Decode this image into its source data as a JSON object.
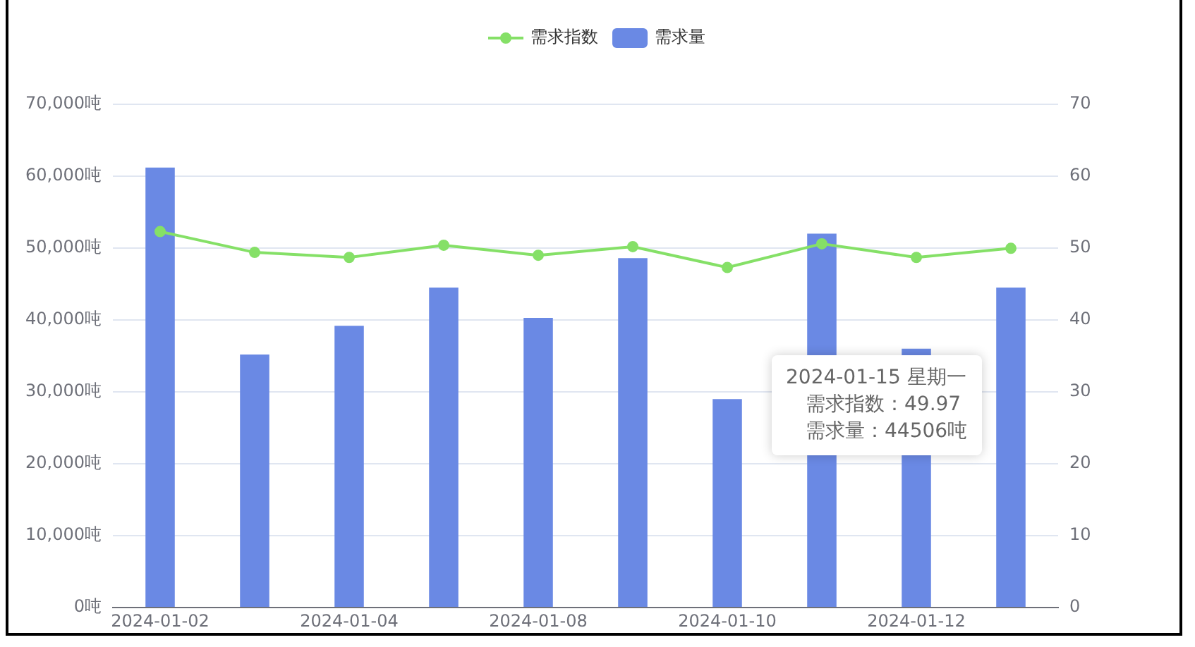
{
  "chart_data": {
    "type": "bar",
    "categories": [
      "2024-01-02",
      null,
      "2024-01-04",
      null,
      "2024-01-08",
      null,
      "2024-01-10",
      null,
      "2024-01-12",
      null
    ],
    "series": [
      {
        "name": "需求指数",
        "type": "line",
        "axis": "y2",
        "color": "#85e067",
        "values": [
          52.3,
          49.4,
          48.7,
          50.4,
          49.0,
          50.2,
          47.3,
          50.6,
          48.7,
          49.97
        ]
      },
      {
        "name": "需求量",
        "type": "bar",
        "color": "#6a89e4",
        "values": [
          61200,
          35200,
          39200,
          44500,
          40300,
          48600,
          29000,
          52000,
          36000,
          44506
        ]
      }
    ],
    "ylim": [
      0,
      70000
    ],
    "yticks": [
      {
        "value": 0,
        "label": "0吨"
      },
      {
        "value": 10000,
        "label": "10,000吨"
      },
      {
        "value": 20000,
        "label": "20,000吨"
      },
      {
        "value": 30000,
        "label": "30,000吨"
      },
      {
        "value": 40000,
        "label": "40,000吨"
      },
      {
        "value": 50000,
        "label": "50,000吨"
      },
      {
        "value": 60000,
        "label": "60,000吨"
      },
      {
        "value": 70000,
        "label": "70,000吨"
      }
    ],
    "y2lim": [
      0,
      70
    ],
    "y2ticks": [
      0,
      10,
      20,
      30,
      40,
      50,
      60,
      70
    ],
    "grid": "y",
    "legend": "top",
    "marker": "circle",
    "annotations": [
      "2024-01-15 星期一",
      "需求指数：49.97",
      "需求量：44506吨"
    ]
  }
}
